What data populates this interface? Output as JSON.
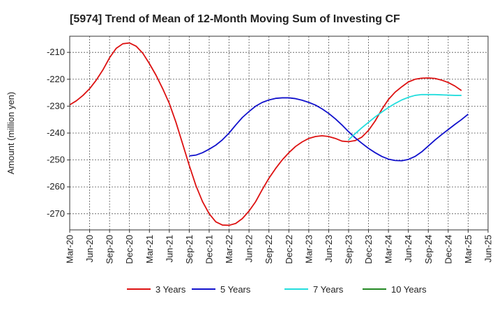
{
  "chart_data": {
    "type": "line",
    "title": "[5974]  Trend of Mean of 12-Month Moving Sum of Investing CF",
    "xlabel": "",
    "ylabel": "Amount (million yen)",
    "x_ticks": [
      "Mar-20",
      "Jun-20",
      "Sep-20",
      "Dec-20",
      "Mar-21",
      "Jun-21",
      "Sep-21",
      "Dec-21",
      "Mar-22",
      "Jun-22",
      "Sep-22",
      "Dec-22",
      "Mar-23",
      "Jun-23",
      "Sep-23",
      "Dec-23",
      "Mar-24",
      "Jun-24",
      "Sep-24",
      "Dec-24",
      "Mar-25",
      "Jun-25"
    ],
    "y_ticks": [
      -210,
      -220,
      -230,
      -240,
      -250,
      -260,
      -270
    ],
    "ylim": [
      -276,
      -204
    ],
    "grid": true,
    "legend_position": "bottom",
    "series": [
      {
        "name": "3 Years",
        "color": "#dd1111",
        "start_index": 0,
        "values": [
          -229.5,
          -228.0,
          -226.0,
          -223.5,
          -220.3,
          -216.5,
          -212.0,
          -208.5,
          -206.8,
          -206.5,
          -207.7,
          -210.3,
          -214.2,
          -218.5,
          -223.5,
          -229.0,
          -236.0,
          -244.0,
          -252.0,
          -259.5,
          -265.5,
          -270.0,
          -273.0,
          -274.2,
          -274.3,
          -273.6,
          -271.8,
          -269.0,
          -265.5,
          -261.0,
          -256.8,
          -253.2,
          -250.0,
          -247.3,
          -245.0,
          -243.3,
          -242.0,
          -241.3,
          -241.0,
          -241.3,
          -242.0,
          -243.0,
          -243.2,
          -242.8,
          -241.5,
          -239.0,
          -235.5,
          -231.2,
          -227.5,
          -224.8,
          -222.8,
          -221.0,
          -220.0,
          -219.6,
          -219.5,
          -219.7,
          -220.3,
          -221.2,
          -222.5,
          -224.2
        ]
      },
      {
        "name": "5 Years",
        "color": "#1111cc",
        "start_index": 18,
        "values": [
          -248.5,
          -248.2,
          -247.3,
          -246.0,
          -244.5,
          -242.5,
          -240.0,
          -237.0,
          -234.2,
          -232.0,
          -230.0,
          -228.6,
          -227.7,
          -227.1,
          -226.9,
          -226.9,
          -227.2,
          -227.8,
          -228.6,
          -229.6,
          -231.0,
          -232.7,
          -234.7,
          -237.0,
          -239.5,
          -241.8,
          -243.8,
          -245.7,
          -247.3,
          -248.7,
          -249.7,
          -250.2,
          -250.3,
          -249.8,
          -248.7,
          -247.0,
          -244.8,
          -242.6,
          -240.6,
          -238.7,
          -236.8,
          -235.0,
          -233.0
        ]
      },
      {
        "name": "7 Years",
        "color": "#22dddd",
        "start_index": 42,
        "values": [
          -242.5,
          -240.2,
          -238.0,
          -236.0,
          -234.0,
          -232.2,
          -230.5,
          -229.0,
          -227.7,
          -226.7,
          -226.0,
          -225.7,
          -225.7,
          -225.7,
          -225.8,
          -225.9,
          -226.0,
          -226.0
        ]
      },
      {
        "name": "10 Years",
        "color": "#228822",
        "start_index": 0,
        "values": []
      }
    ]
  }
}
